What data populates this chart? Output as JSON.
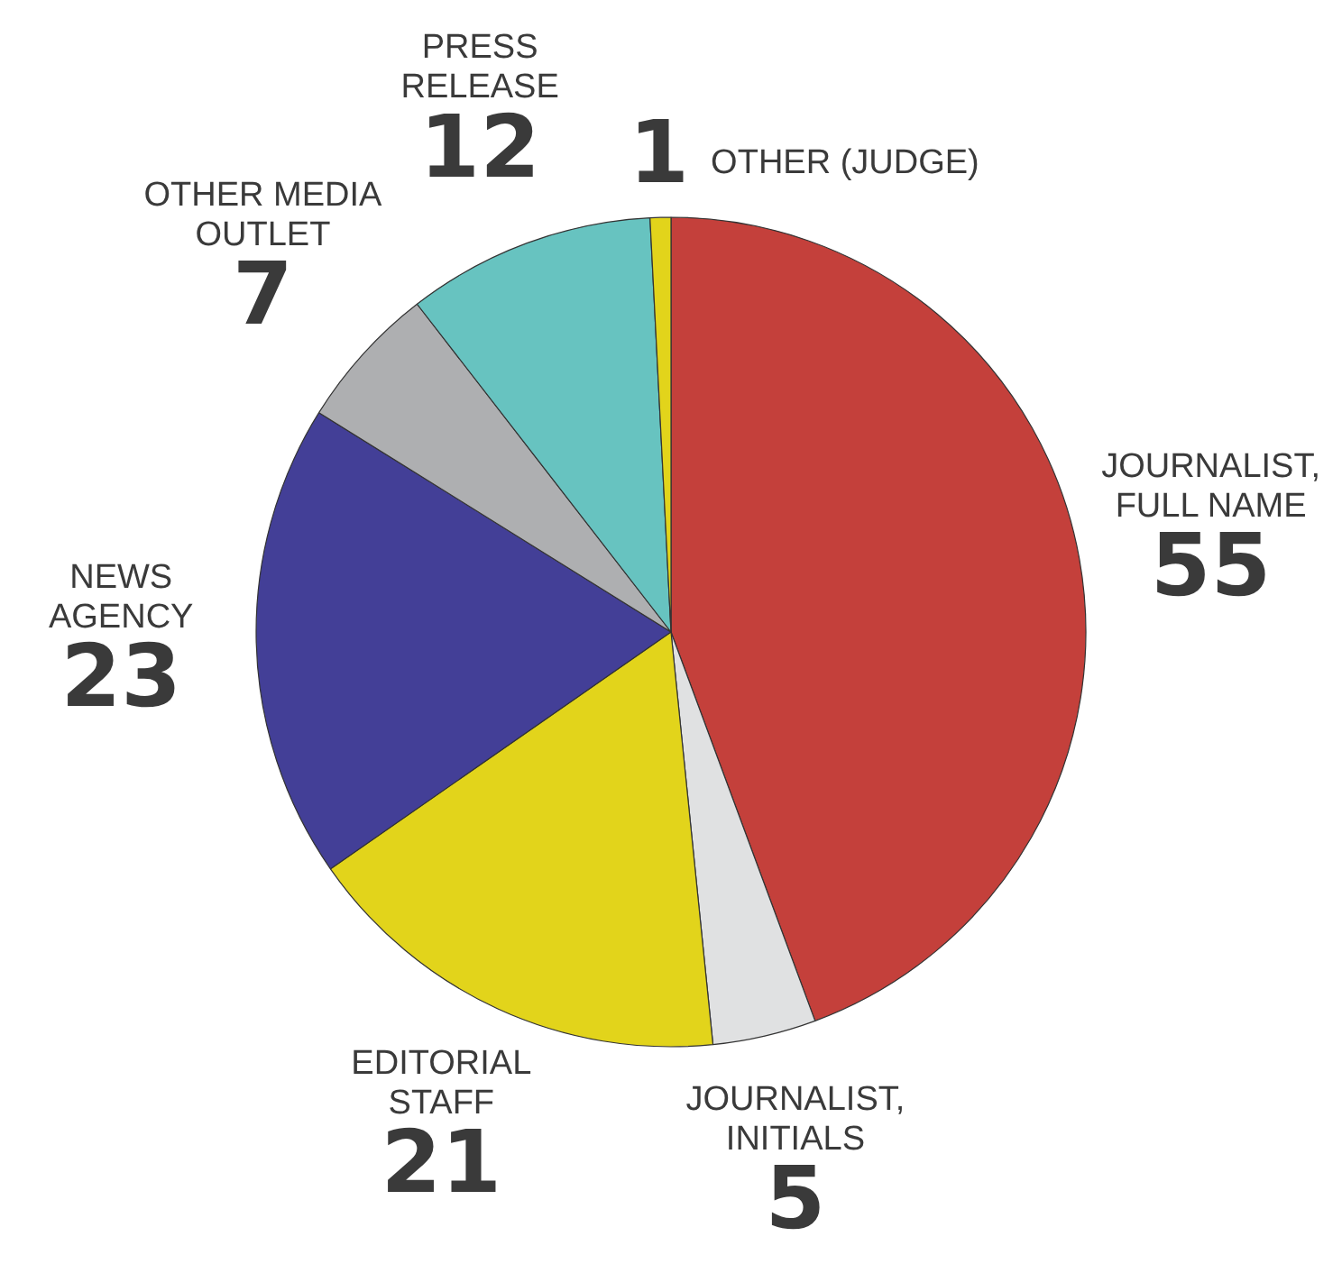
{
  "chart_data": {
    "type": "pie",
    "categories": [
      "JOURNALIST, FULL NAME",
      "JOURNALIST, INITIALS",
      "EDITORIAL STAFF",
      "NEWS AGENCY",
      "OTHER MEDIA OUTLET",
      "PRESS RELEASE",
      "OTHER (JUDGE)"
    ],
    "values": [
      55,
      5,
      21,
      23,
      7,
      12,
      1
    ],
    "colors": [
      "#c4403b",
      "#e0e1e2",
      "#e2d41b",
      "#433f97",
      "#aeafb1",
      "#67c3c0",
      "#e2d41b"
    ],
    "data_labels": true,
    "legend": false
  }
}
